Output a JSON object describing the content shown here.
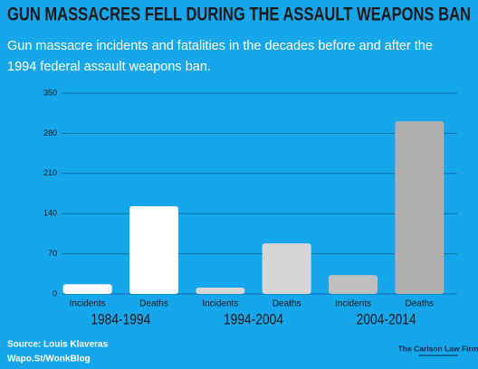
{
  "chart_data": {
    "type": "bar",
    "title": "GUN MASSACRES FELL DURING THE ASSAULT WEAPONS BAN",
    "subtitle": [
      "Gun massacre incidents and fatalities in the decades before and after the",
      "1994 federal assault weapons ban."
    ],
    "categories": [
      "Incidents",
      "Deaths",
      "Incidents",
      "Deaths",
      "Incidents",
      "Deaths"
    ],
    "groups": [
      "1984-1994",
      "1994-2004",
      "2004-2014"
    ],
    "values": [
      17,
      153,
      11,
      88,
      33,
      301
    ],
    "colors": [
      "#ffffff",
      "#ffffff",
      "#d6d6d6",
      "#d6d6d6",
      "#bfbfbf",
      "#b0b0b0"
    ],
    "ylim": [
      0,
      350
    ],
    "yticks": [
      0,
      70,
      140,
      210,
      280,
      350
    ],
    "grid": true,
    "source": [
      "Source: Louis Klaveras",
      "Wapo.St/WonkBlog"
    ],
    "logo": "The Carlson Law Firm"
  }
}
